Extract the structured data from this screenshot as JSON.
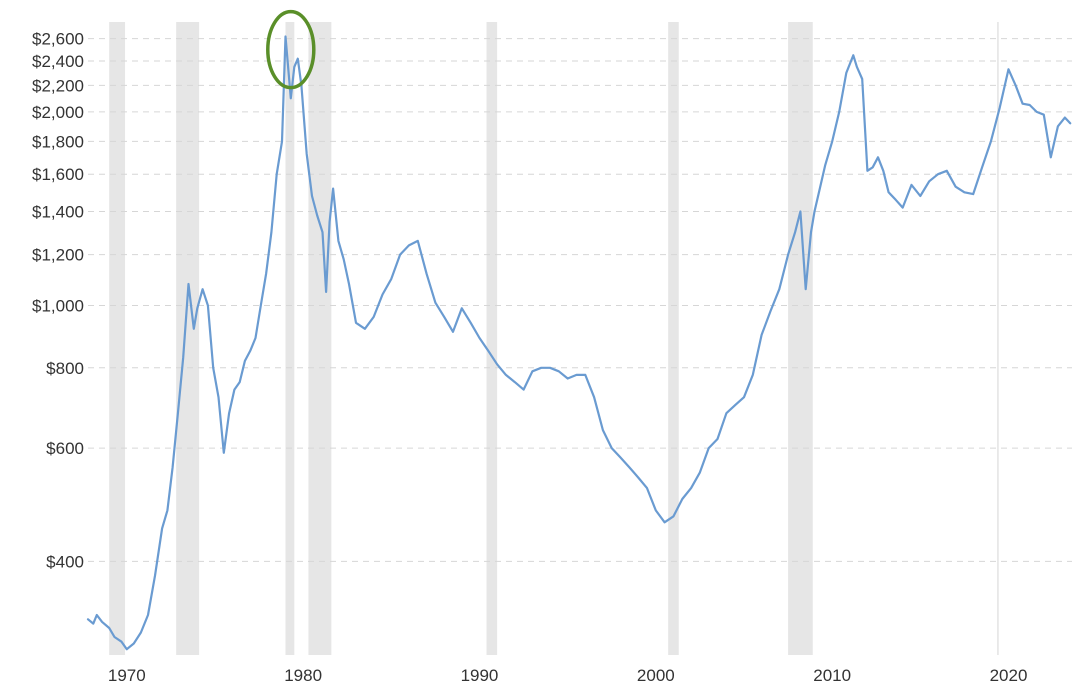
{
  "chart_data": {
    "type": "line",
    "title": "",
    "xlabel": "",
    "ylabel": "",
    "y_scale": "log",
    "xlim": [
      1967.8,
      2023.6
    ],
    "ylim": [
      286,
      2760
    ],
    "grid": true,
    "y_ticks": [
      {
        "value": 400,
        "label": "$400"
      },
      {
        "value": 600,
        "label": "$600"
      },
      {
        "value": 800,
        "label": "$800"
      },
      {
        "value": 1000,
        "label": "$1,000"
      },
      {
        "value": 1200,
        "label": "$1,200"
      },
      {
        "value": 1400,
        "label": "$1,400"
      },
      {
        "value": 1600,
        "label": "$1,600"
      },
      {
        "value": 1800,
        "label": "$1,800"
      },
      {
        "value": 2000,
        "label": "$2,000"
      },
      {
        "value": 2200,
        "label": "$2,200"
      },
      {
        "value": 2400,
        "label": "$2,400"
      },
      {
        "value": 2600,
        "label": "$2,600"
      }
    ],
    "x_ticks": [
      {
        "value": 1970,
        "label": "1970"
      },
      {
        "value": 1980,
        "label": "1980"
      },
      {
        "value": 1990,
        "label": "1990"
      },
      {
        "value": 2000,
        "label": "2000"
      },
      {
        "value": 2010,
        "label": "2010"
      },
      {
        "value": 2020,
        "label": "2020"
      }
    ],
    "recessions": [
      [
        1969.0,
        1969.9
      ],
      [
        1972.8,
        1974.1
      ],
      [
        1979.0,
        1979.5
      ],
      [
        1980.3,
        1981.6
      ],
      [
        1990.4,
        1991.0
      ],
      [
        2000.7,
        2001.3
      ],
      [
        2007.5,
        2008.9
      ]
    ],
    "vertical_marker": 2019.4,
    "highlight": {
      "x": 1979.3,
      "y": 2500
    },
    "colors": {
      "line": "#6a9bd1",
      "recession": "#e6e6e6",
      "highlight": "#5a8f29",
      "grid": "#d6d6d6"
    },
    "series": [
      {
        "x": [
          1967.8,
          1968.1,
          1968.3,
          1968.6,
          1969.0,
          1969.3,
          1969.7,
          1970.0,
          1970.4,
          1970.8,
          1971.2,
          1971.6,
          1972.0,
          1972.3,
          1972.6,
          1972.9,
          1973.2,
          1973.5,
          1973.8,
          1974.0,
          1974.3,
          1974.6,
          1974.9,
          1975.2,
          1975.5,
          1975.8,
          1976.1,
          1976.4,
          1976.7,
          1977.0,
          1977.3,
          1977.6,
          1977.9,
          1978.2,
          1978.5,
          1978.8,
          1979.0,
          1979.3,
          1979.5,
          1979.7,
          1979.9,
          1980.2,
          1980.5,
          1980.8,
          1981.1,
          1981.3,
          1981.5,
          1981.7,
          1982.0,
          1982.3,
          1982.6,
          1983.0,
          1983.5,
          1984.0,
          1984.5,
          1985.0,
          1985.5,
          1986.0,
          1986.5,
          1987.0,
          1987.5,
          1988.0,
          1988.5,
          1989.0,
          1989.5,
          1990.0,
          1990.5,
          1991.0,
          1991.5,
          1992.0,
          1992.5,
          1993.0,
          1993.5,
          1994.0,
          1994.5,
          1995.0,
          1995.5,
          1996.0,
          1996.5,
          1997.0,
          1997.5,
          1998.0,
          1998.5,
          1999.0,
          1999.5,
          2000.0,
          2000.5,
          2001.0,
          2001.5,
          2002.0,
          2002.5,
          2003.0,
          2003.5,
          2004.0,
          2004.5,
          2005.0,
          2005.5,
          2006.0,
          2006.5,
          2007.0,
          2007.5,
          2007.9,
          2008.2,
          2008.5,
          2008.8,
          2009.0,
          2009.3,
          2009.6,
          2010.0,
          2010.4,
          2010.8,
          2011.2,
          2011.4,
          2011.7,
          2012.0,
          2012.3,
          2012.6,
          2012.9,
          2013.2,
          2013.6,
          2014.0,
          2014.5,
          2015.0,
          2015.5,
          2016.0,
          2016.5,
          2017.0,
          2017.5,
          2018.0,
          2018.5,
          2019.0,
          2019.5,
          2020.0,
          2020.4,
          2020.8,
          2021.2,
          2021.6,
          2022.0,
          2022.4,
          2022.8,
          2023.2,
          2023.5
        ],
        "y": [
          325,
          320,
          330,
          322,
          315,
          305,
          300,
          292,
          298,
          310,
          330,
          380,
          450,
          480,
          560,
          680,
          830,
          1080,
          920,
          990,
          1060,
          1000,
          800,
          720,
          590,
          680,
          740,
          760,
          820,
          850,
          890,
          1000,
          1120,
          1300,
          1600,
          1800,
          2620,
          2100,
          2350,
          2420,
          2200,
          1720,
          1480,
          1380,
          1300,
          1050,
          1350,
          1520,
          1260,
          1180,
          1080,
          940,
          920,
          960,
          1040,
          1100,
          1200,
          1240,
          1260,
          1120,
          1010,
          960,
          910,
          990,
          940,
          890,
          850,
          810,
          780,
          760,
          740,
          790,
          800,
          800,
          790,
          770,
          780,
          780,
          720,
          640,
          600,
          580,
          560,
          540,
          520,
          480,
          460,
          470,
          500,
          520,
          550,
          600,
          620,
          680,
          700,
          720,
          780,
          900,
          980,
          1060,
          1200,
          1300,
          1400,
          1060,
          1300,
          1400,
          1520,
          1650,
          1800,
          2000,
          2300,
          2450,
          2350,
          2250,
          1620,
          1640,
          1700,
          1620,
          1500,
          1460,
          1420,
          1540,
          1480,
          1560,
          1600,
          1620,
          1530,
          1500,
          1490,
          1640,
          1800,
          2030,
          2330,
          2200,
          2060,
          2050,
          2000,
          1980,
          1700,
          1900,
          1960,
          1920
        ]
      }
    ]
  }
}
